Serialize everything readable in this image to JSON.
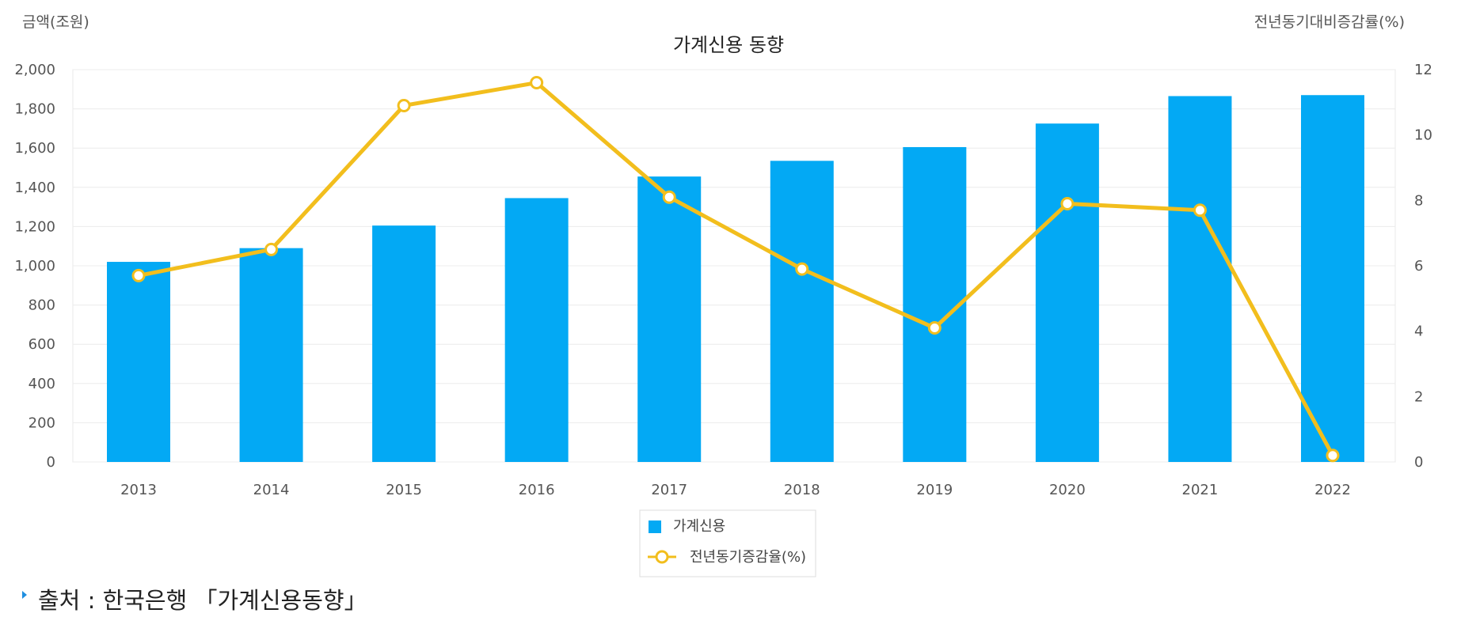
{
  "chart_data": {
    "type": "bar",
    "title": "가계신용 동향",
    "ylabel_left": "금액(조원)",
    "ylabel_right": "전년동기대비증감률(%)",
    "categories": [
      "2013",
      "2014",
      "2015",
      "2016",
      "2017",
      "2018",
      "2019",
      "2020",
      "2021",
      "2022"
    ],
    "series": [
      {
        "name": "가계신용",
        "type": "bar",
        "axis": "left",
        "color": "#03a9f4",
        "values": [
          1020,
          1090,
          1205,
          1345,
          1455,
          1535,
          1605,
          1725,
          1865,
          1870
        ]
      },
      {
        "name": "전년동기증감율(%)",
        "type": "line",
        "axis": "right",
        "color": "#f2be1d",
        "values": [
          5.7,
          6.5,
          10.9,
          11.6,
          8.1,
          5.9,
          4.1,
          7.9,
          7.7,
          0.2
        ]
      }
    ],
    "ylim_left": [
      0,
      2000
    ],
    "yticks_left": [
      "0",
      "200",
      "400",
      "600",
      "800",
      "1,000",
      "1,200",
      "1,400",
      "1,600",
      "1,800",
      "2,000"
    ],
    "ylim_right": [
      0,
      12
    ],
    "yticks_right": [
      "0",
      "2",
      "4",
      "6",
      "8",
      "10",
      "12"
    ],
    "grid": true,
    "legend_position": "bottom-center"
  },
  "source": {
    "text": "출처 : 한국은행 「가계신용동향」"
  }
}
